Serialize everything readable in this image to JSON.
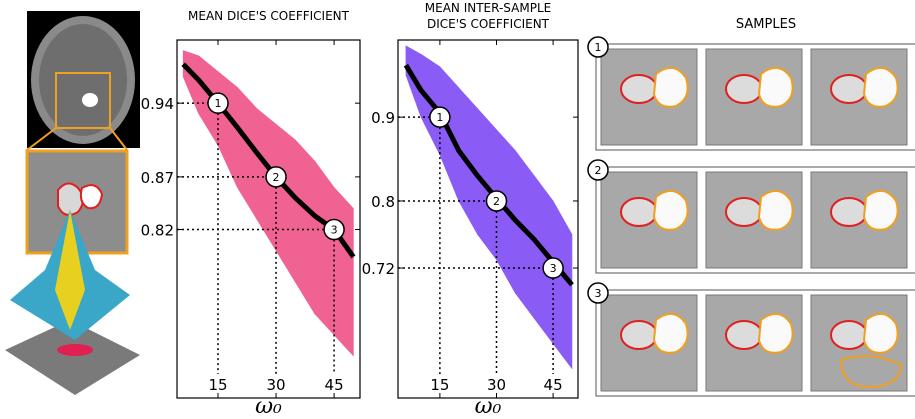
{
  "chart_data": [
    {
      "type": "line",
      "title": [
        "MEAN DICE'S COEFFICIENT"
      ],
      "xlabel": "ω₀",
      "x": [
        6,
        10,
        15,
        20,
        25,
        30,
        35,
        40,
        45,
        50
      ],
      "values": [
        0.977,
        0.962,
        0.94,
        0.917,
        0.893,
        0.87,
        0.85,
        0.833,
        0.82,
        0.794
      ],
      "band": {
        "upper": [
          0.99,
          0.985,
          0.97,
          0.955,
          0.935,
          0.92,
          0.905,
          0.885,
          0.86,
          0.84
        ],
        "lower": [
          0.965,
          0.93,
          0.9,
          0.86,
          0.83,
          0.8,
          0.77,
          0.74,
          0.72,
          0.7
        ]
      },
      "color": "#000000",
      "band_color": "#f06292",
      "xlim": [
        4.4,
        51.7
      ],
      "ylim": [
        0.66,
        1.0
      ],
      "xticks": [
        15,
        30,
        45
      ],
      "yticks": [
        0.94,
        0.87,
        0.82
      ],
      "annotations": [
        {
          "label": "1",
          "x": 15,
          "y": 0.94
        },
        {
          "label": "2",
          "x": 30,
          "y": 0.87
        },
        {
          "label": "3",
          "x": 45,
          "y": 0.82
        }
      ]
    },
    {
      "type": "line",
      "title": [
        "MEAN INTER-SAMPLE",
        "DICE'S COEFFICIENT"
      ],
      "xlabel": "ω₀",
      "x": [
        6,
        10,
        15,
        20,
        25,
        30,
        35,
        40,
        45,
        50
      ],
      "values": [
        0.962,
        0.932,
        0.905,
        0.86,
        0.83,
        0.803,
        0.777,
        0.754,
        0.727,
        0.7
      ],
      "band": {
        "upper": [
          0.985,
          0.975,
          0.96,
          0.935,
          0.91,
          0.885,
          0.86,
          0.83,
          0.8,
          0.76
        ],
        "lower": [
          0.95,
          0.9,
          0.855,
          0.8,
          0.76,
          0.73,
          0.69,
          0.66,
          0.63,
          0.6
        ]
      },
      "color": "#000000",
      "band_color": "#8a5cf5",
      "xlim": [
        3.9,
        51.6
      ],
      "ylim": [
        0.565,
        0.992
      ],
      "xticks": [
        15,
        30,
        45
      ],
      "yticks": [
        0.9,
        0.8,
        0.72
      ],
      "annotations": [
        {
          "label": "1",
          "x": 15,
          "y": 0.9
        },
        {
          "label": "2",
          "x": 30,
          "y": 0.8
        },
        {
          "label": "3",
          "x": 45,
          "y": 0.72
        }
      ]
    }
  ],
  "samples": {
    "title": "SAMPLES",
    "rows": [
      "1",
      "2",
      "3"
    ]
  }
}
